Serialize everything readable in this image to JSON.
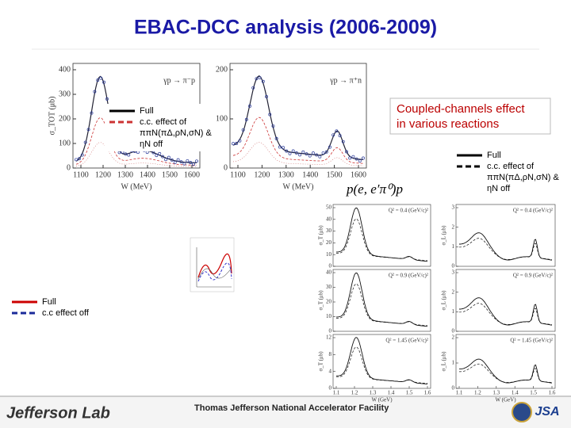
{
  "title": "EBAC-DCC analysis (2006-2009)",
  "plots": [
    {
      "reaction": "γp → π⁻p",
      "ylabel": "σ_TOT (μb)",
      "xlabel": "W (MeV)",
      "yticks": [
        0,
        100,
        200,
        300,
        400
      ],
      "xticks": [
        1100,
        1200,
        1300,
        1400,
        1500,
        1600
      ]
    },
    {
      "reaction": "γp → π⁺n",
      "ylabel": "",
      "xlabel": "W (MeV)",
      "yticks": [
        0,
        100,
        200
      ],
      "xticks": [
        1100,
        1200,
        1300,
        1400,
        1500,
        1600
      ]
    }
  ],
  "legend_photo": [
    {
      "label": [
        "Full"
      ]
    },
    {
      "label": [
        "c.c. effect of",
        "ππN(πΔ,ρN,σN) &",
        "ηN off"
      ]
    }
  ],
  "callout": [
    "Coupled-channels effect",
    "in various reactions"
  ],
  "legend_electro": [
    {
      "label": [
        "Full"
      ]
    },
    {
      "label": [
        "c.c. effect of",
        "ππN(πΔ,ρN,σN) &",
        "ηN off"
      ]
    }
  ],
  "electro_reaction": "p(e, e′π⁰)p",
  "panels": [
    {
      "ylabel": "σ_T (μb)",
      "q2": "Q² = 0.4 (GeV/c)²",
      "yticks": [
        0,
        10,
        20,
        30,
        40,
        50
      ]
    },
    {
      "ylabel": "σ_L (μb)",
      "q2": "Q² = 0.4 (GeV/c)²",
      "yticks": [
        0,
        1,
        2,
        3
      ]
    },
    {
      "ylabel": "σ_T (μb)",
      "q2": "Q² = 0.9 (GeV/c)²",
      "yticks": [
        0,
        10,
        20,
        30,
        40
      ]
    },
    {
      "ylabel": "σ_L (μb)",
      "q2": "Q² = 0.9 (GeV/c)²",
      "yticks": [
        0,
        1,
        2,
        3
      ]
    },
    {
      "ylabel": "σ_T (μb)",
      "q2": "Q² = 1.45 (GeV/c)²",
      "yticks": [
        0,
        4,
        8,
        12
      ],
      "xlabel": "W (GeV)",
      "xticks": [
        1.1,
        1.2,
        1.3,
        1.4,
        1.5,
        1.6
      ]
    },
    {
      "ylabel": "σ_L (μb)",
      "q2": "Q² = 1.45 (GeV/c)²",
      "yticks": [
        0,
        1,
        2
      ],
      "xlabel": "W (GeV)",
      "xticks": [
        1.1,
        1.2,
        1.3,
        1.4,
        1.5,
        1.6
      ]
    }
  ],
  "legend_pion": [
    {
      "label": [
        "Full"
      ]
    },
    {
      "label": [
        "c.c effect  off"
      ]
    }
  ],
  "footer": {
    "lab": "Jefferson Lab",
    "facility": "Thomas Jefferson National Accelerator Facility",
    "jsa": "JSA"
  }
}
